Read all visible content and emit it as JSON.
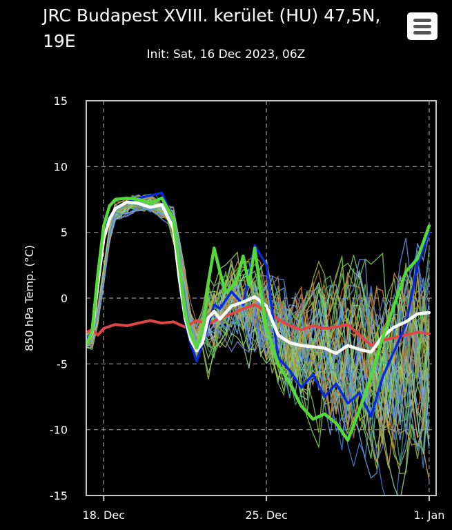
{
  "header": {
    "title": "JRC Budapest XVIII. kerület (HU) 47,5N, 19E",
    "subtitle": "Init: Sat, 16 Dec 2023, 06Z"
  },
  "menu": {
    "icon": "hamburger-menu-icon"
  },
  "chart_data": {
    "type": "line",
    "title": "JRC Budapest XVIII. kerület (HU) 47,5N, 19E",
    "subtitle": "Init: Sat, 16 Dec 2023, 06Z",
    "ylabel": "850 hPa Temp. (°C)",
    "ylim": [
      -15,
      15
    ],
    "yticks": [
      -15,
      -10,
      -5,
      0,
      5,
      10,
      15
    ],
    "xlim": [
      17.25,
      32.3
    ],
    "xticks": [
      {
        "x": 18,
        "label": "18. Dec"
      },
      {
        "x": 25,
        "label": "25. Dec"
      },
      {
        "x": 32,
        "label": "1. Jan"
      }
    ],
    "grid": true,
    "series": [
      {
        "role": "climatology",
        "color": "#e04848",
        "x": [
          17.25,
          17.5,
          17.75,
          18,
          18.5,
          19,
          19.5,
          20,
          20.5,
          21,
          21.5,
          22,
          22.5,
          23,
          23.5,
          24,
          24.5,
          25,
          25.5,
          26,
          26.5,
          27,
          27.5,
          28,
          28.5,
          29,
          29.5,
          30,
          30.5,
          31,
          31.5,
          32
        ],
        "y": [
          -2.6,
          -2.4,
          -2.8,
          -2.3,
          -2.0,
          -2.1,
          -1.9,
          -1.7,
          -1.9,
          -1.8,
          -2.2,
          -1.7,
          -2.0,
          -1.5,
          -1.2,
          -0.8,
          -0.5,
          -1.0,
          -1.6,
          -2.1,
          -2.4,
          -2.1,
          -2.3,
          -2.2,
          -2.0,
          -2.8,
          -3.6,
          -3.2,
          -3.0,
          -2.8,
          -2.6,
          -2.7
        ]
      },
      {
        "role": "ensemble-mean",
        "color": "#ffffff",
        "x": [
          17.25,
          17.5,
          17.75,
          18,
          18.25,
          18.5,
          19,
          19.5,
          20,
          20.5,
          21,
          21.25,
          21.5,
          21.75,
          22,
          22.25,
          22.5,
          22.75,
          23,
          23.5,
          24,
          24.5,
          25,
          25.5,
          26,
          26.5,
          27,
          27.5,
          28,
          28.5,
          29,
          29.5,
          30,
          30.5,
          31,
          31.5,
          32
        ],
        "y": [
          -3.5,
          -2.6,
          1.0,
          4.5,
          6.0,
          6.8,
          7.3,
          7.2,
          6.9,
          7.1,
          5.3,
          1.5,
          -1.5,
          -3.2,
          -4.0,
          -3.4,
          -1.5,
          -1.0,
          -1.6,
          -0.6,
          -0.3,
          0.1,
          -0.6,
          -2.8,
          -3.4,
          -3.6,
          -3.7,
          -3.8,
          -4.2,
          -3.6,
          -3.9,
          -4.1,
          -2.9,
          -2.2,
          -1.8,
          -1.2,
          -1.1
        ]
      },
      {
        "role": "control",
        "color": "#0a2ad8",
        "x": [
          17.25,
          17.5,
          17.75,
          18,
          18.5,
          19,
          19.5,
          20,
          20.5,
          21,
          21.25,
          21.5,
          21.75,
          22,
          22.25,
          22.5,
          22.75,
          23,
          23.5,
          24,
          24.5,
          25,
          25.5,
          26,
          26.5,
          27,
          27.5,
          28,
          28.5,
          29,
          29.5,
          30,
          30.5,
          31,
          31.5,
          32
        ],
        "y": [
          -3.2,
          -2.5,
          1.5,
          5.5,
          6.8,
          7.3,
          7.6,
          7.8,
          8.0,
          6.0,
          2.0,
          -1.8,
          -3.5,
          -4.8,
          -3.5,
          -2.0,
          -0.5,
          -0.8,
          0.5,
          -0.5,
          4.0,
          2.5,
          -4.5,
          -5.5,
          -6.8,
          -5.8,
          -7.5,
          -6.5,
          -8.0,
          -7.2,
          -9.0,
          -6.0,
          -4.0,
          -2.0,
          2.5,
          5.0
        ]
      },
      {
        "role": "deterministic",
        "color": "#55d83a",
        "x": [
          17.25,
          17.5,
          17.75,
          18,
          18.25,
          18.5,
          19,
          19.5,
          20,
          20.5,
          21,
          21.25,
          21.5,
          21.75,
          22,
          22.25,
          22.5,
          22.75,
          23,
          23.25,
          23.5,
          23.75,
          24,
          24.25,
          24.5,
          24.75,
          25,
          25.5,
          26,
          26.5,
          27,
          27.5,
          28,
          28.5,
          29,
          29.5,
          30,
          30.5,
          31,
          31.5,
          32
        ],
        "y": [
          -3.6,
          -2.5,
          1.8,
          5.5,
          7.0,
          7.5,
          7.6,
          7.5,
          7.2,
          7.6,
          6.0,
          2.5,
          -1.2,
          -2.8,
          -3.8,
          -2.5,
          1.2,
          3.8,
          2.0,
          0.4,
          0.8,
          1.5,
          3.2,
          1.0,
          3.8,
          0.5,
          -2.2,
          -5.0,
          -6.5,
          -8.2,
          -9.2,
          -8.8,
          -9.5,
          -10.8,
          -8.5,
          -6.0,
          -3.0,
          -0.5,
          2.0,
          3.0,
          5.5
        ]
      }
    ],
    "ensemble_members": 50
  }
}
